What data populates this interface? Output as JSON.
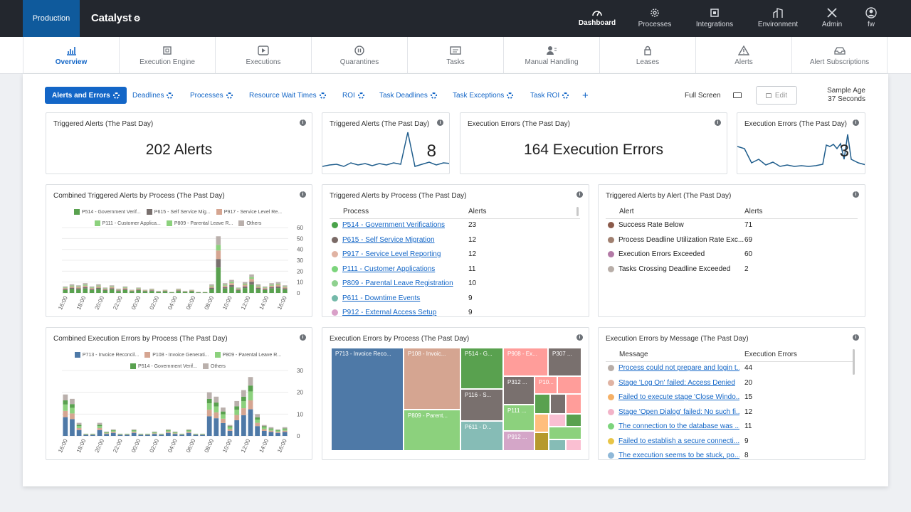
{
  "env": "Production",
  "app": "Catalyst",
  "topnav": [
    {
      "label": "Dashboard",
      "icon": "dashboard-icon"
    },
    {
      "label": "Processes",
      "icon": "gear-icon"
    },
    {
      "label": "Integrations",
      "icon": "chip-icon"
    },
    {
      "label": "Environment",
      "icon": "building-icon"
    },
    {
      "label": "Admin",
      "icon": "tools-icon"
    },
    {
      "label": "fw",
      "icon": "user-icon"
    }
  ],
  "subnav": [
    {
      "label": "Overview",
      "icon": "bar-chart-icon"
    },
    {
      "label": "Execution Engine",
      "icon": "cpu-icon"
    },
    {
      "label": "Executions",
      "icon": "play-icon"
    },
    {
      "label": "Quarantines",
      "icon": "pause-icon"
    },
    {
      "label": "Tasks",
      "icon": "task-icon"
    },
    {
      "label": "Manual Handling",
      "icon": "person-icon"
    },
    {
      "label": "Leases",
      "icon": "lock-icon"
    },
    {
      "label": "Alerts",
      "icon": "warning-icon"
    },
    {
      "label": "Alert Subscriptions",
      "icon": "inbox-icon"
    }
  ],
  "tabs": [
    "Alerts and Errors",
    "Deadlines",
    "Processes",
    "Resource Wait Times",
    "ROI",
    "Task Deadlines",
    "Task Exceptions",
    "Task ROI"
  ],
  "add": "+",
  "fullscreen": "Full Screen",
  "edit": "Edit",
  "sample_age_label": "Sample Age",
  "sample_age_value": "37 Seconds",
  "info": "i",
  "cards": {
    "alerts_total": {
      "title": "Triggered Alerts (The Past Day)",
      "value": "202 Alerts"
    },
    "alerts_spark": {
      "title": "Triggered Alerts (The Past Day)",
      "value": "8"
    },
    "errors_total": {
      "title": "Execution Errors (The Past Day)",
      "value": "164 Execution Errors"
    },
    "errors_spark": {
      "title": "Execution Errors (The Past Day)",
      "value": "3"
    },
    "combined_alerts": {
      "title": "Combined Triggered Alerts by Process (The Past Day)"
    },
    "alerts_by_process": {
      "title": "Triggered Alerts by Process (The Past Day)",
      "col1": "Process",
      "col2": "Alerts"
    },
    "alerts_by_alert": {
      "title": "Triggered Alerts by Alert (The Past Day)",
      "col1": "Alert",
      "col2": "Alerts"
    },
    "combined_errors": {
      "title": "Combined Execution Errors by Process (The Past Day)"
    },
    "errors_by_process": {
      "title": "Execution Errors by Process (The Past Day)"
    },
    "errors_by_message": {
      "title": "Execution Errors by Message (The Past Day)",
      "col1": "Message",
      "col2": "Execution Errors"
    }
  },
  "alerts_process_rows": [
    {
      "name": "P514 - Government Verifications",
      "value": "23",
      "color": "#4aa34a"
    },
    {
      "name": "P615 - Self Service Migration",
      "value": "12",
      "color": "#7a6a66"
    },
    {
      "name": "P917 - Service Level Reporting",
      "value": "12",
      "color": "#e0b3a3"
    },
    {
      "name": "P111 - Customer Applications",
      "value": "11",
      "color": "#7cd47c"
    },
    {
      "name": "P809 - Parental Leave Registration",
      "value": "10",
      "color": "#8fd18f"
    },
    {
      "name": "P611 - Downtime Events",
      "value": "9",
      "color": "#74b9a9"
    },
    {
      "name": "P912 - External Access Setup",
      "value": "9",
      "color": "#d9a0c8"
    }
  ],
  "alerts_alert_rows": [
    {
      "name": "Success Rate Below",
      "value": "71",
      "color": "#8b5a4a"
    },
    {
      "name": "Process Deadline Utilization Rate Exc...",
      "value": "69",
      "color": "#a08070"
    },
    {
      "name": "Execution Errors Exceeded",
      "value": "60",
      "color": "#b37aa6"
    },
    {
      "name": "Tasks Crossing Deadline Exceeded",
      "value": "2",
      "color": "#b8aea8"
    }
  ],
  "error_message_rows": [
    {
      "name": "Process could not prepare and login t...",
      "value": "44",
      "color": "#b8aea8"
    },
    {
      "name": "Stage 'Log On' failed: Access Denied",
      "value": "20",
      "color": "#e0b3a3"
    },
    {
      "name": "Failed to execute stage 'Close Windo...",
      "value": "15",
      "color": "#f5b066"
    },
    {
      "name": "Stage 'Open Dialog' failed: No such fi...",
      "value": "12",
      "color": "#f2b3c8"
    },
    {
      "name": "The connection to the database was ...",
      "value": "11",
      "color": "#7cd47c"
    },
    {
      "name": "Failed to establish a secure connecti...",
      "value": "9",
      "color": "#e8c547"
    },
    {
      "name": "The execution seems to be stuck, po...",
      "value": "8",
      "color": "#8fb8d8"
    }
  ],
  "treemap": [
    {
      "label": "P713 - Invoice Reco...",
      "color": "#4e79a7"
    },
    {
      "label": "P108 - Invoic...",
      "color": "#d5a591"
    },
    {
      "label": "P514 - G...",
      "color": "#59a14f"
    },
    {
      "label": "P908 - Ex...",
      "color": "#ff9d9a"
    },
    {
      "label": "P307 ...",
      "color": "#79706e"
    },
    {
      "label": "P809 - Parent...",
      "color": "#8cd17d"
    },
    {
      "label": "P116 - S...",
      "color": "#79706e"
    },
    {
      "label": "P312 ...",
      "color": "#79706e"
    },
    {
      "label": "P10...",
      "color": "#ff9d9a"
    },
    {
      "label": "P611 - D...",
      "color": "#86bcb6"
    },
    {
      "label": "P111 ...",
      "color": "#8cd17d"
    },
    {
      "label": "P912 ...",
      "color": "#d4a6c8"
    }
  ],
  "chart_data": [
    {
      "type": "bar",
      "title": "Combined Triggered Alerts by Process (The Past Day)",
      "stacked": true,
      "series": [
        {
          "name": "P514 - Government Verif...",
          "color": "#59a14f"
        },
        {
          "name": "P615 - Self Service Mig...",
          "color": "#79706e"
        },
        {
          "name": "P917 - Service Level Re...",
          "color": "#d5a591"
        },
        {
          "name": "P111 - Customer Applica...",
          "color": "#8cd17d"
        },
        {
          "name": "P809 - Parental Leave R...",
          "color": "#8cd17d"
        },
        {
          "name": "Others",
          "color": "#bab0ac"
        }
      ],
      "x": [
        "16:00",
        "18:00",
        "20:00",
        "22:00",
        "00:00",
        "02:00",
        "04:00",
        "06:00",
        "08:00",
        "10:00",
        "12:00",
        "14:00",
        "16:00"
      ],
      "totals": [
        6,
        8,
        7,
        9,
        6,
        8,
        5,
        7,
        4,
        6,
        3,
        5,
        3,
        4,
        2,
        3,
        1,
        4,
        2,
        3,
        1,
        1,
        8,
        52,
        9,
        12,
        5,
        10,
        17,
        8,
        6,
        9,
        10,
        7
      ],
      "ylim": [
        0,
        60
      ],
      "yticks": [
        0,
        10,
        20,
        30,
        40,
        50,
        60
      ]
    },
    {
      "type": "bar",
      "title": "Combined Execution Errors by Process (The Past Day)",
      "stacked": true,
      "series": [
        {
          "name": "P713 - Invoice Reconcil...",
          "color": "#4e79a7"
        },
        {
          "name": "P108 - Invoice Generati...",
          "color": "#d5a591"
        },
        {
          "name": "P809 - Parental Leave R...",
          "color": "#8cd17d"
        },
        {
          "name": "P514 - Government Verif...",
          "color": "#59a14f"
        },
        {
          "name": "Others",
          "color": "#bab0ac"
        }
      ],
      "x": [
        "16:00",
        "18:00",
        "20:00",
        "22:00",
        "00:00",
        "02:00",
        "04:00",
        "06:00",
        "08:00",
        "10:00",
        "12:00",
        "14:00",
        "16:00"
      ],
      "totals": [
        19,
        17,
        6,
        1,
        1,
        6,
        2,
        3,
        1,
        1,
        3,
        1,
        1,
        2,
        1,
        3,
        2,
        1,
        3,
        1,
        1,
        20,
        18,
        13,
        5,
        16,
        21,
        27,
        10,
        5,
        4,
        3,
        4
      ],
      "ylim": [
        0,
        30
      ],
      "yticks": [
        0,
        10,
        20,
        30
      ]
    }
  ]
}
